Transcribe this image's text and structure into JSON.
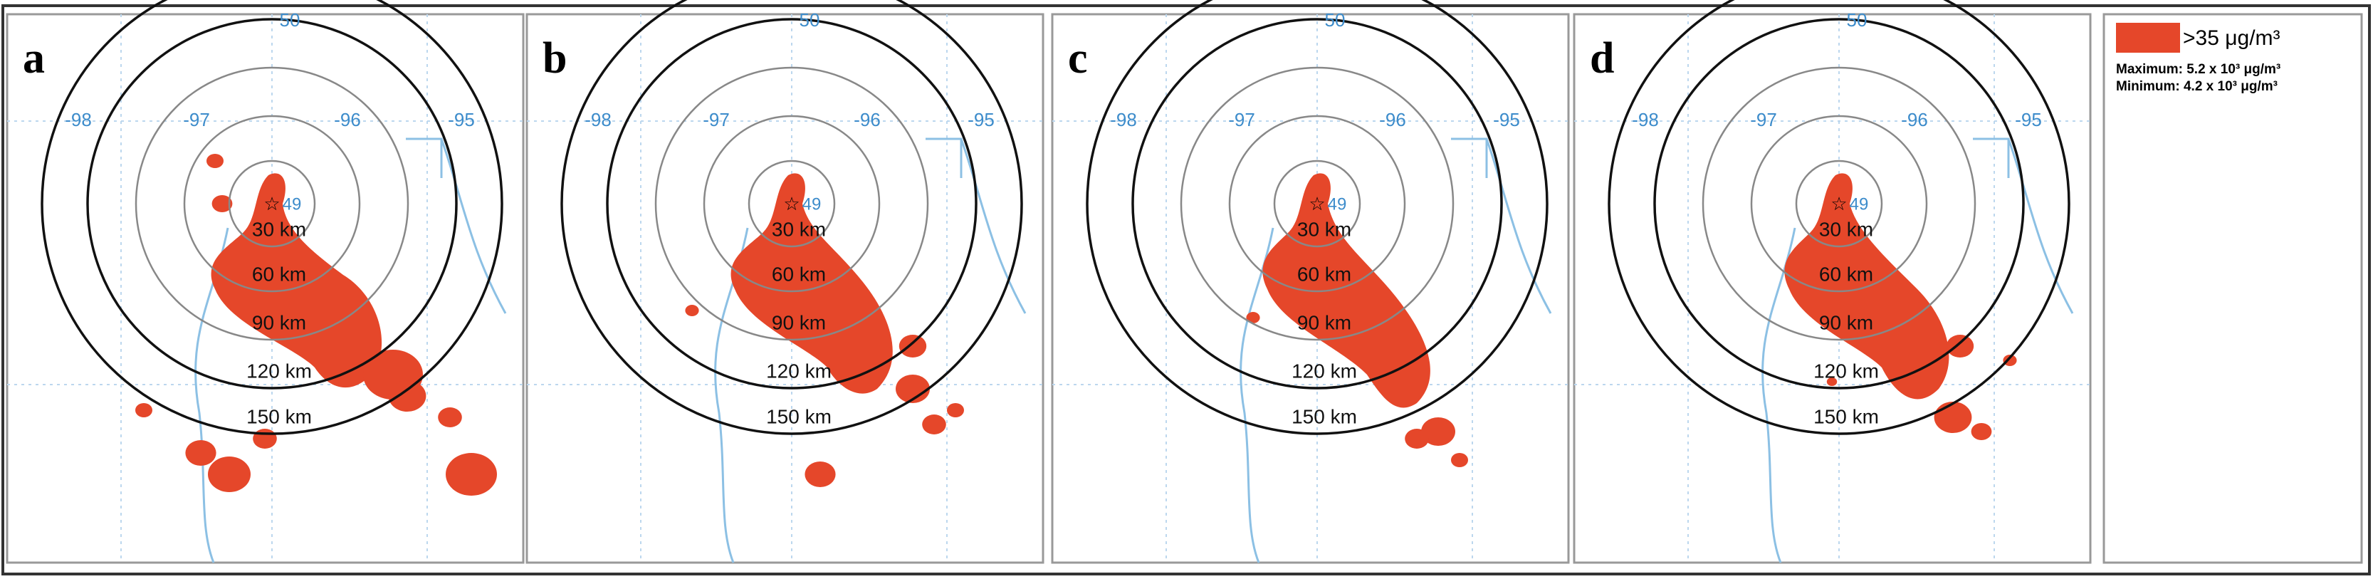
{
  "panels": [
    {
      "label": "a"
    },
    {
      "label": "b"
    },
    {
      "label": "c"
    },
    {
      "label": "d"
    }
  ],
  "lat_labels": [
    "50",
    "49"
  ],
  "lon_labels": [
    "-98",
    "-97",
    "-96",
    "-95"
  ],
  "rings": [
    "30 km",
    "60 km",
    "90 km",
    "120 km",
    "150 km"
  ],
  "legend": {
    "label": ">35 μg/m³",
    "maximum": "Maximum: 5.2 x 10³  μg/m³",
    "minimum": "Minimum: 4.2 x 10³  μg/m³"
  }
}
